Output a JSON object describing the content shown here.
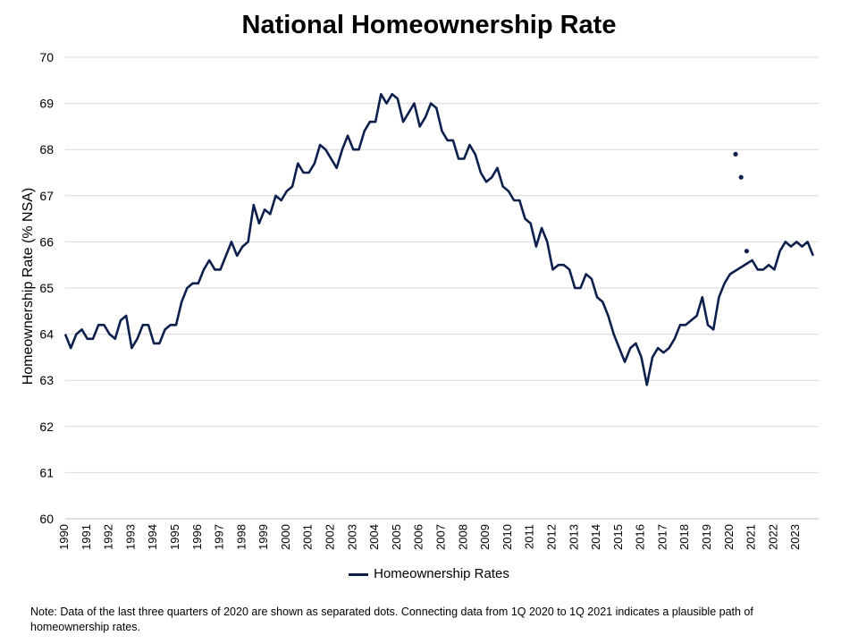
{
  "chart_data": {
    "type": "line",
    "title": "National Homeownership Rate",
    "ylabel": "Homeownership Rate (% NSA)",
    "xlabel": "",
    "ylim": [
      60,
      70
    ],
    "yticks": [
      60,
      61,
      62,
      63,
      64,
      65,
      66,
      67,
      68,
      69,
      70
    ],
    "x_tick_labels": [
      "1990",
      "1991",
      "1992",
      "1993",
      "1994",
      "1995",
      "1996",
      "1997",
      "1998",
      "1999",
      "2000",
      "2001",
      "2002",
      "2003",
      "2004",
      "2005",
      "2006",
      "2007",
      "2008",
      "2009",
      "2010",
      "2011",
      "2012",
      "2013",
      "2014",
      "2015",
      "2016",
      "2017",
      "2018",
      "2019",
      "2020",
      "2021",
      "2022",
      "2023"
    ],
    "grid": "horizontal",
    "legend": "bottom",
    "series": [
      {
        "name": "Homeownership Rates",
        "color": "#0d1f4d",
        "start": "1990 Q1",
        "values": [
          64.0,
          63.7,
          64.0,
          64.1,
          63.9,
          63.9,
          64.2,
          64.2,
          64.0,
          63.9,
          64.3,
          64.4,
          63.7,
          63.9,
          64.2,
          64.2,
          63.8,
          63.8,
          64.1,
          64.2,
          64.2,
          64.7,
          65.0,
          65.1,
          65.1,
          65.4,
          65.6,
          65.4,
          65.4,
          65.7,
          66.0,
          65.7,
          65.9,
          66.0,
          66.8,
          66.4,
          66.7,
          66.6,
          67.0,
          66.9,
          67.1,
          67.2,
          67.7,
          67.5,
          67.5,
          67.7,
          68.1,
          68.0,
          67.8,
          67.6,
          68.0,
          68.3,
          68.0,
          68.0,
          68.4,
          68.6,
          68.6,
          69.2,
          69.0,
          69.2,
          69.1,
          68.6,
          68.8,
          69.0,
          68.5,
          68.7,
          69.0,
          68.9,
          68.4,
          68.2,
          68.2,
          67.8,
          67.8,
          68.1,
          67.9,
          67.5,
          67.3,
          67.4,
          67.6,
          67.2,
          67.1,
          66.9,
          66.9,
          66.5,
          66.4,
          65.9,
          66.3,
          66.0,
          65.4,
          65.5,
          65.5,
          65.4,
          65.0,
          65.0,
          65.3,
          65.2,
          64.8,
          64.7,
          64.4,
          64.0,
          63.7,
          63.4,
          63.7,
          63.8,
          63.5,
          62.9,
          63.5,
          63.7,
          63.6,
          63.7,
          63.9,
          64.2,
          64.2,
          64.3,
          64.4,
          64.8,
          64.2,
          64.1,
          64.8,
          65.1,
          65.3,
          null,
          null,
          null,
          65.6,
          65.4,
          65.4,
          65.5,
          65.4,
          65.8,
          66.0,
          65.9,
          66.0,
          65.9,
          66.0,
          65.7
        ]
      }
    ],
    "separated_dots": [
      {
        "quarter": "2020 Q2",
        "value": 67.9
      },
      {
        "quarter": "2020 Q3",
        "value": 67.4
      },
      {
        "quarter": "2020 Q4",
        "value": 65.8
      }
    ],
    "note": "Note: Data of the last three quarters of 2020  are shown as separated dots. Connecting data from 1Q 2020  to 1Q 2021  indicates a plausible path of homeownership rates."
  }
}
